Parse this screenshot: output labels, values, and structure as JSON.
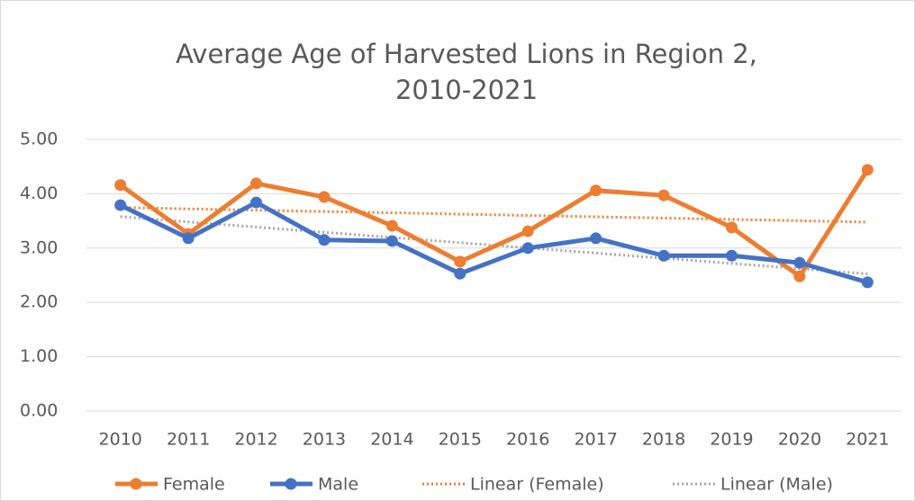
{
  "chart_data": {
    "type": "line",
    "title": [
      "Average Age of Harvested Lions in Region 2,",
      "2010-2021"
    ],
    "categories": [
      "2010",
      "2011",
      "2012",
      "2013",
      "2014",
      "2015",
      "2016",
      "2017",
      "2018",
      "2019",
      "2020",
      "2021"
    ],
    "series": [
      {
        "name": "Female",
        "color": "#ed7d31",
        "values": [
          4.16,
          3.26,
          4.19,
          3.94,
          3.41,
          2.75,
          3.31,
          4.06,
          3.97,
          3.38,
          2.48,
          4.44
        ],
        "trendline": {
          "name": "Linear (Female)",
          "color": "#ed7d31"
        }
      },
      {
        "name": "Male",
        "color": "#4472c4",
        "values": [
          3.79,
          3.18,
          3.84,
          3.15,
          3.13,
          2.53,
          3.0,
          3.18,
          2.86,
          2.86,
          2.73,
          2.37
        ],
        "trendline": {
          "name": "Linear (Male)",
          "color": "#a5a5a5"
        }
      }
    ],
    "ylim": [
      0,
      5
    ],
    "yticks": [
      {
        "value": 0,
        "label": "0.00"
      },
      {
        "value": 1,
        "label": "1.00"
      },
      {
        "value": 2,
        "label": "2.00"
      },
      {
        "value": 3,
        "label": "3.00"
      },
      {
        "value": 4,
        "label": "4.00"
      },
      {
        "value": 5,
        "label": "5.00"
      }
    ],
    "grid": true,
    "legend": "bottom"
  }
}
